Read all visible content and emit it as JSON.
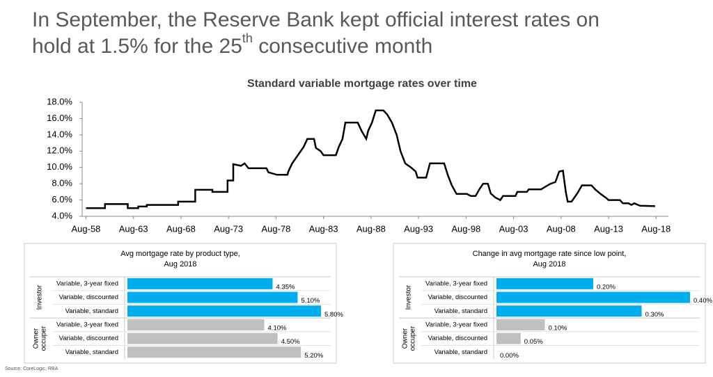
{
  "header": {
    "title_parts": [
      "In September, the Reserve Bank kept official interest rates on hold at 1.5% for the 25",
      "th",
      " consecutive month"
    ]
  },
  "source": "Source:  CoreLogic, RBA",
  "chart_data": [
    {
      "type": "line",
      "title": "Standard variable mortgage rates over time",
      "color": "#000000",
      "x": [
        1958.6,
        1960.6,
        1960.6,
        1963.0,
        1963.0,
        1964.1,
        1964.1,
        1965.0,
        1965.0,
        1968.3,
        1968.3,
        1970.1,
        1970.1,
        1971.9,
        1971.9,
        1973.5,
        1973.5,
        1974.1,
        1974.1,
        1974.9,
        1975.3,
        1975.7,
        1977.6,
        1977.8,
        1978.7,
        1979.8,
        1979.9,
        1980.3,
        1980.9,
        1981.5,
        1981.9,
        1982.6,
        1982.8,
        1983.3,
        1983.6,
        1984.9,
        1985.2,
        1985.6,
        1985.9,
        1987.2,
        1987.6,
        1988.1,
        1988.3,
        1988.7,
        1989.1,
        1989.9,
        1990.3,
        1990.8,
        1991.3,
        1991.7,
        1992.2,
        1992.8,
        1993.3,
        1993.5,
        1994.4,
        1994.8,
        1996.3,
        1996.7,
        1997.1,
        1997.6,
        1998.7,
        1999.1,
        1999.6,
        2000.0,
        2000.4,
        2000.9,
        2001.2,
        2001.7,
        2002.2,
        2002.5,
        2003.8,
        2004.0,
        2005.0,
        2005.2,
        2006.5,
        2006.9,
        2007.5,
        2008.0,
        2008.4,
        2008.8,
        2009.1,
        2009.3,
        2009.7,
        2010.3,
        2010.8,
        2011.8,
        2012.2,
        2012.7,
        2013.3,
        2013.6,
        2014.8,
        2015.1,
        2015.7,
        2016.0,
        2016.3,
        2016.9,
        2018.5
      ],
      "values": [
        5.0,
        5.0,
        5.5,
        5.5,
        5.0,
        5.0,
        5.2,
        5.2,
        5.4,
        5.4,
        5.8,
        5.8,
        7.25,
        7.25,
        7.0,
        7.0,
        8.4,
        8.4,
        10.4,
        10.2,
        10.5,
        9.9,
        9.9,
        9.4,
        9.1,
        9.1,
        9.5,
        10.5,
        11.5,
        12.5,
        13.5,
        13.5,
        12.4,
        12.0,
        11.5,
        11.5,
        12.5,
        13.5,
        15.5,
        15.5,
        14.5,
        13.5,
        14.5,
        15.5,
        17.0,
        17.0,
        16.5,
        15.5,
        14.0,
        12.0,
        10.5,
        10.0,
        9.5,
        8.75,
        8.75,
        10.5,
        10.5,
        9.0,
        7.8,
        6.75,
        6.75,
        6.5,
        6.5,
        7.3,
        8.0,
        8.0,
        6.8,
        6.3,
        6.0,
        6.5,
        6.5,
        7.0,
        7.0,
        7.3,
        7.3,
        7.6,
        8.0,
        8.2,
        9.5,
        9.6,
        7.0,
        5.8,
        5.8,
        6.8,
        7.8,
        7.8,
        7.3,
        6.8,
        6.3,
        6.0,
        6.0,
        5.6,
        5.6,
        5.4,
        5.6,
        5.3,
        5.25
      ],
      "xlim": [
        1958.2,
        2019.9
      ],
      "xticks": [
        {
          "value": 1958.6,
          "label": "Aug-58"
        },
        {
          "value": 1963.6,
          "label": "Aug-63"
        },
        {
          "value": 1968.6,
          "label": "Aug-68"
        },
        {
          "value": 1973.6,
          "label": "Aug-73"
        },
        {
          "value": 1978.6,
          "label": "Aug-78"
        },
        {
          "value": 1983.6,
          "label": "Aug-83"
        },
        {
          "value": 1988.6,
          "label": "Aug-88"
        },
        {
          "value": 1993.6,
          "label": "Aug-93"
        },
        {
          "value": 1998.6,
          "label": "Aug-98"
        },
        {
          "value": 2003.6,
          "label": "Aug-03"
        },
        {
          "value": 2008.6,
          "label": "Aug-08"
        },
        {
          "value": 2013.6,
          "label": "Aug-13"
        },
        {
          "value": 2018.6,
          "label": "Aug-18"
        }
      ],
      "ylim": [
        4,
        18
      ],
      "yticks": [
        {
          "value": 4,
          "label": "4.0%"
        },
        {
          "value": 6,
          "label": "6.0%"
        },
        {
          "value": 8,
          "label": "8.0%"
        },
        {
          "value": 10,
          "label": "10.0%"
        },
        {
          "value": 12,
          "label": "12.0%"
        },
        {
          "value": 14,
          "label": "14.0%"
        },
        {
          "value": 16,
          "label": "16.0%"
        },
        {
          "value": 18,
          "label": "18.0%"
        }
      ]
    },
    {
      "type": "bar",
      "title": [
        "Avg mortgage rate by product type,",
        "Aug 2018"
      ],
      "groups": [
        {
          "name": "Investor",
          "color": "#00aeef",
          "categories": [
            "Variable, 3-year fixed",
            "Variable, discounted",
            "Variable, standard"
          ],
          "values": [
            4.35,
            5.1,
            5.8
          ],
          "value_labels": [
            "4.35%",
            "5.10%",
            "5.80%"
          ]
        },
        {
          "name": "Owner occuper",
          "color": "#bfbfbf",
          "categories": [
            "Variable, 3-year fixed",
            "Variable, discounted",
            "Variable, standard"
          ],
          "values": [
            4.1,
            4.5,
            5.2
          ],
          "value_labels": [
            "4.10%",
            "4.50%",
            "5.20%"
          ]
        }
      ]
    },
    {
      "type": "bar",
      "title": [
        "Change in avg mortgage rate since low point,",
        "Aug 2018"
      ],
      "groups": [
        {
          "name": "Investor",
          "color": "#00aeef",
          "categories": [
            "Variable, 3-year fixed",
            "Variable, discounted",
            "Variable, standard"
          ],
          "values": [
            0.2,
            0.4,
            0.3
          ],
          "value_labels": [
            "0.20%",
            "0.40%",
            "0.30%"
          ]
        },
        {
          "name": "Owner occuper",
          "color": "#bfbfbf",
          "categories": [
            "Variable, 3-year fixed",
            "Variable, discounted",
            "Variable, standard"
          ],
          "values": [
            0.1,
            0.05,
            0.0
          ],
          "value_labels": [
            "0.10%",
            "0.05%",
            "0.00%"
          ]
        }
      ]
    }
  ]
}
